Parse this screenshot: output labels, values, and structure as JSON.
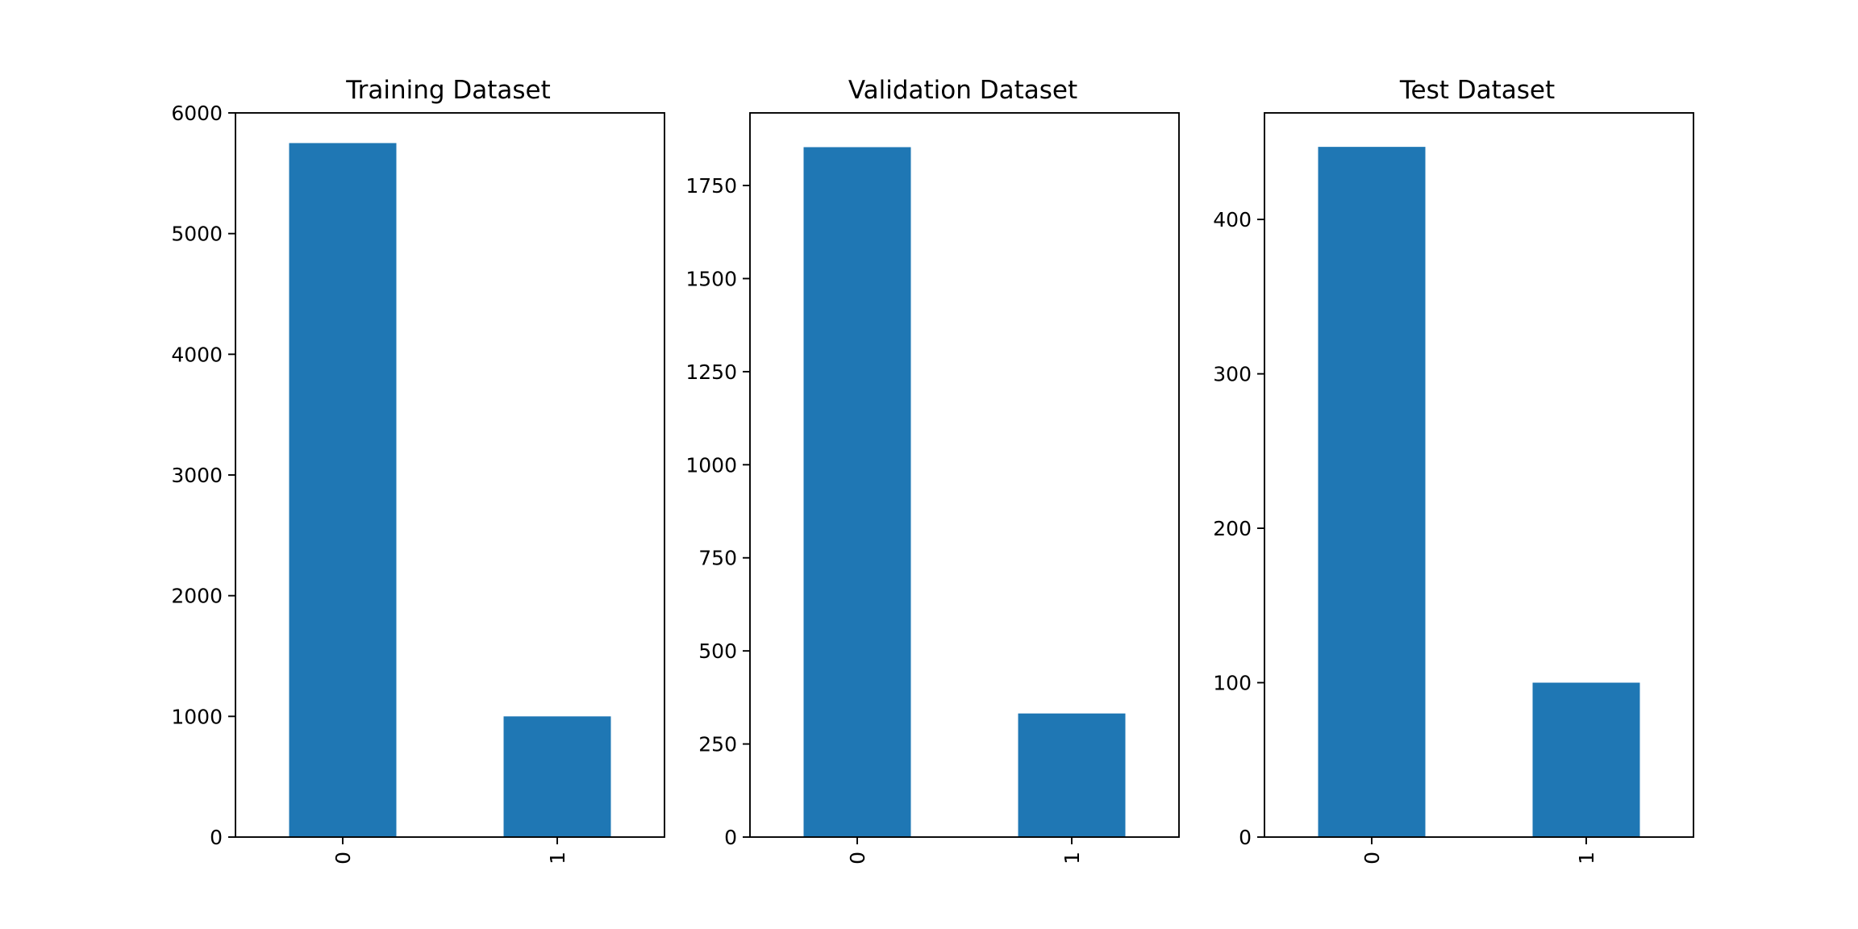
{
  "chart_data": [
    {
      "type": "bar",
      "title": "Training Dataset",
      "categories": [
        "0",
        "1"
      ],
      "values": [
        5750,
        1000
      ],
      "ylim": [
        0,
        6000
      ],
      "yticks": [
        0,
        1000,
        2000,
        3000,
        4000,
        5000,
        6000
      ],
      "xlabel": "",
      "ylabel": "",
      "grid": false,
      "bar_color": "#1f77b4"
    },
    {
      "type": "bar",
      "title": "Validation Dataset",
      "categories": [
        "0",
        "1"
      ],
      "values": [
        1853,
        332
      ],
      "ylim": [
        0,
        1945
      ],
      "yticks": [
        0,
        250,
        500,
        750,
        1000,
        1250,
        1500,
        1750
      ],
      "xlabel": "",
      "ylabel": "",
      "grid": false,
      "bar_color": "#1f77b4"
    },
    {
      "type": "bar",
      "title": "Test Dataset",
      "categories": [
        "0",
        "1"
      ],
      "values": [
        447,
        100
      ],
      "ylim": [
        0,
        469
      ],
      "yticks": [
        0,
        100,
        200,
        300,
        400
      ],
      "xlabel": "",
      "ylabel": "",
      "grid": false,
      "bar_color": "#1f77b4"
    }
  ]
}
